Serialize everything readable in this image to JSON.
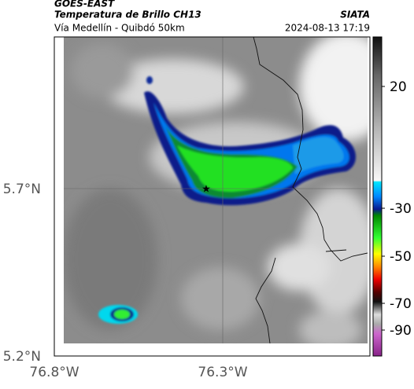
{
  "header": {
    "source": "GOES-EAST",
    "title": "Temperatura de Brillo CH13",
    "org": "SIATA",
    "route": "Vía Medellín - Quibdó 50km",
    "timestamp": "2024-08-13 17:19"
  },
  "map": {
    "lat_labels": [
      "5.7°N",
      "5.2°N"
    ],
    "lon_labels": [
      "76.8°W",
      "76.3°W"
    ]
  },
  "colorbar": {
    "ticks": [
      20,
      -30,
      -50,
      -70,
      -90
    ]
  }
}
